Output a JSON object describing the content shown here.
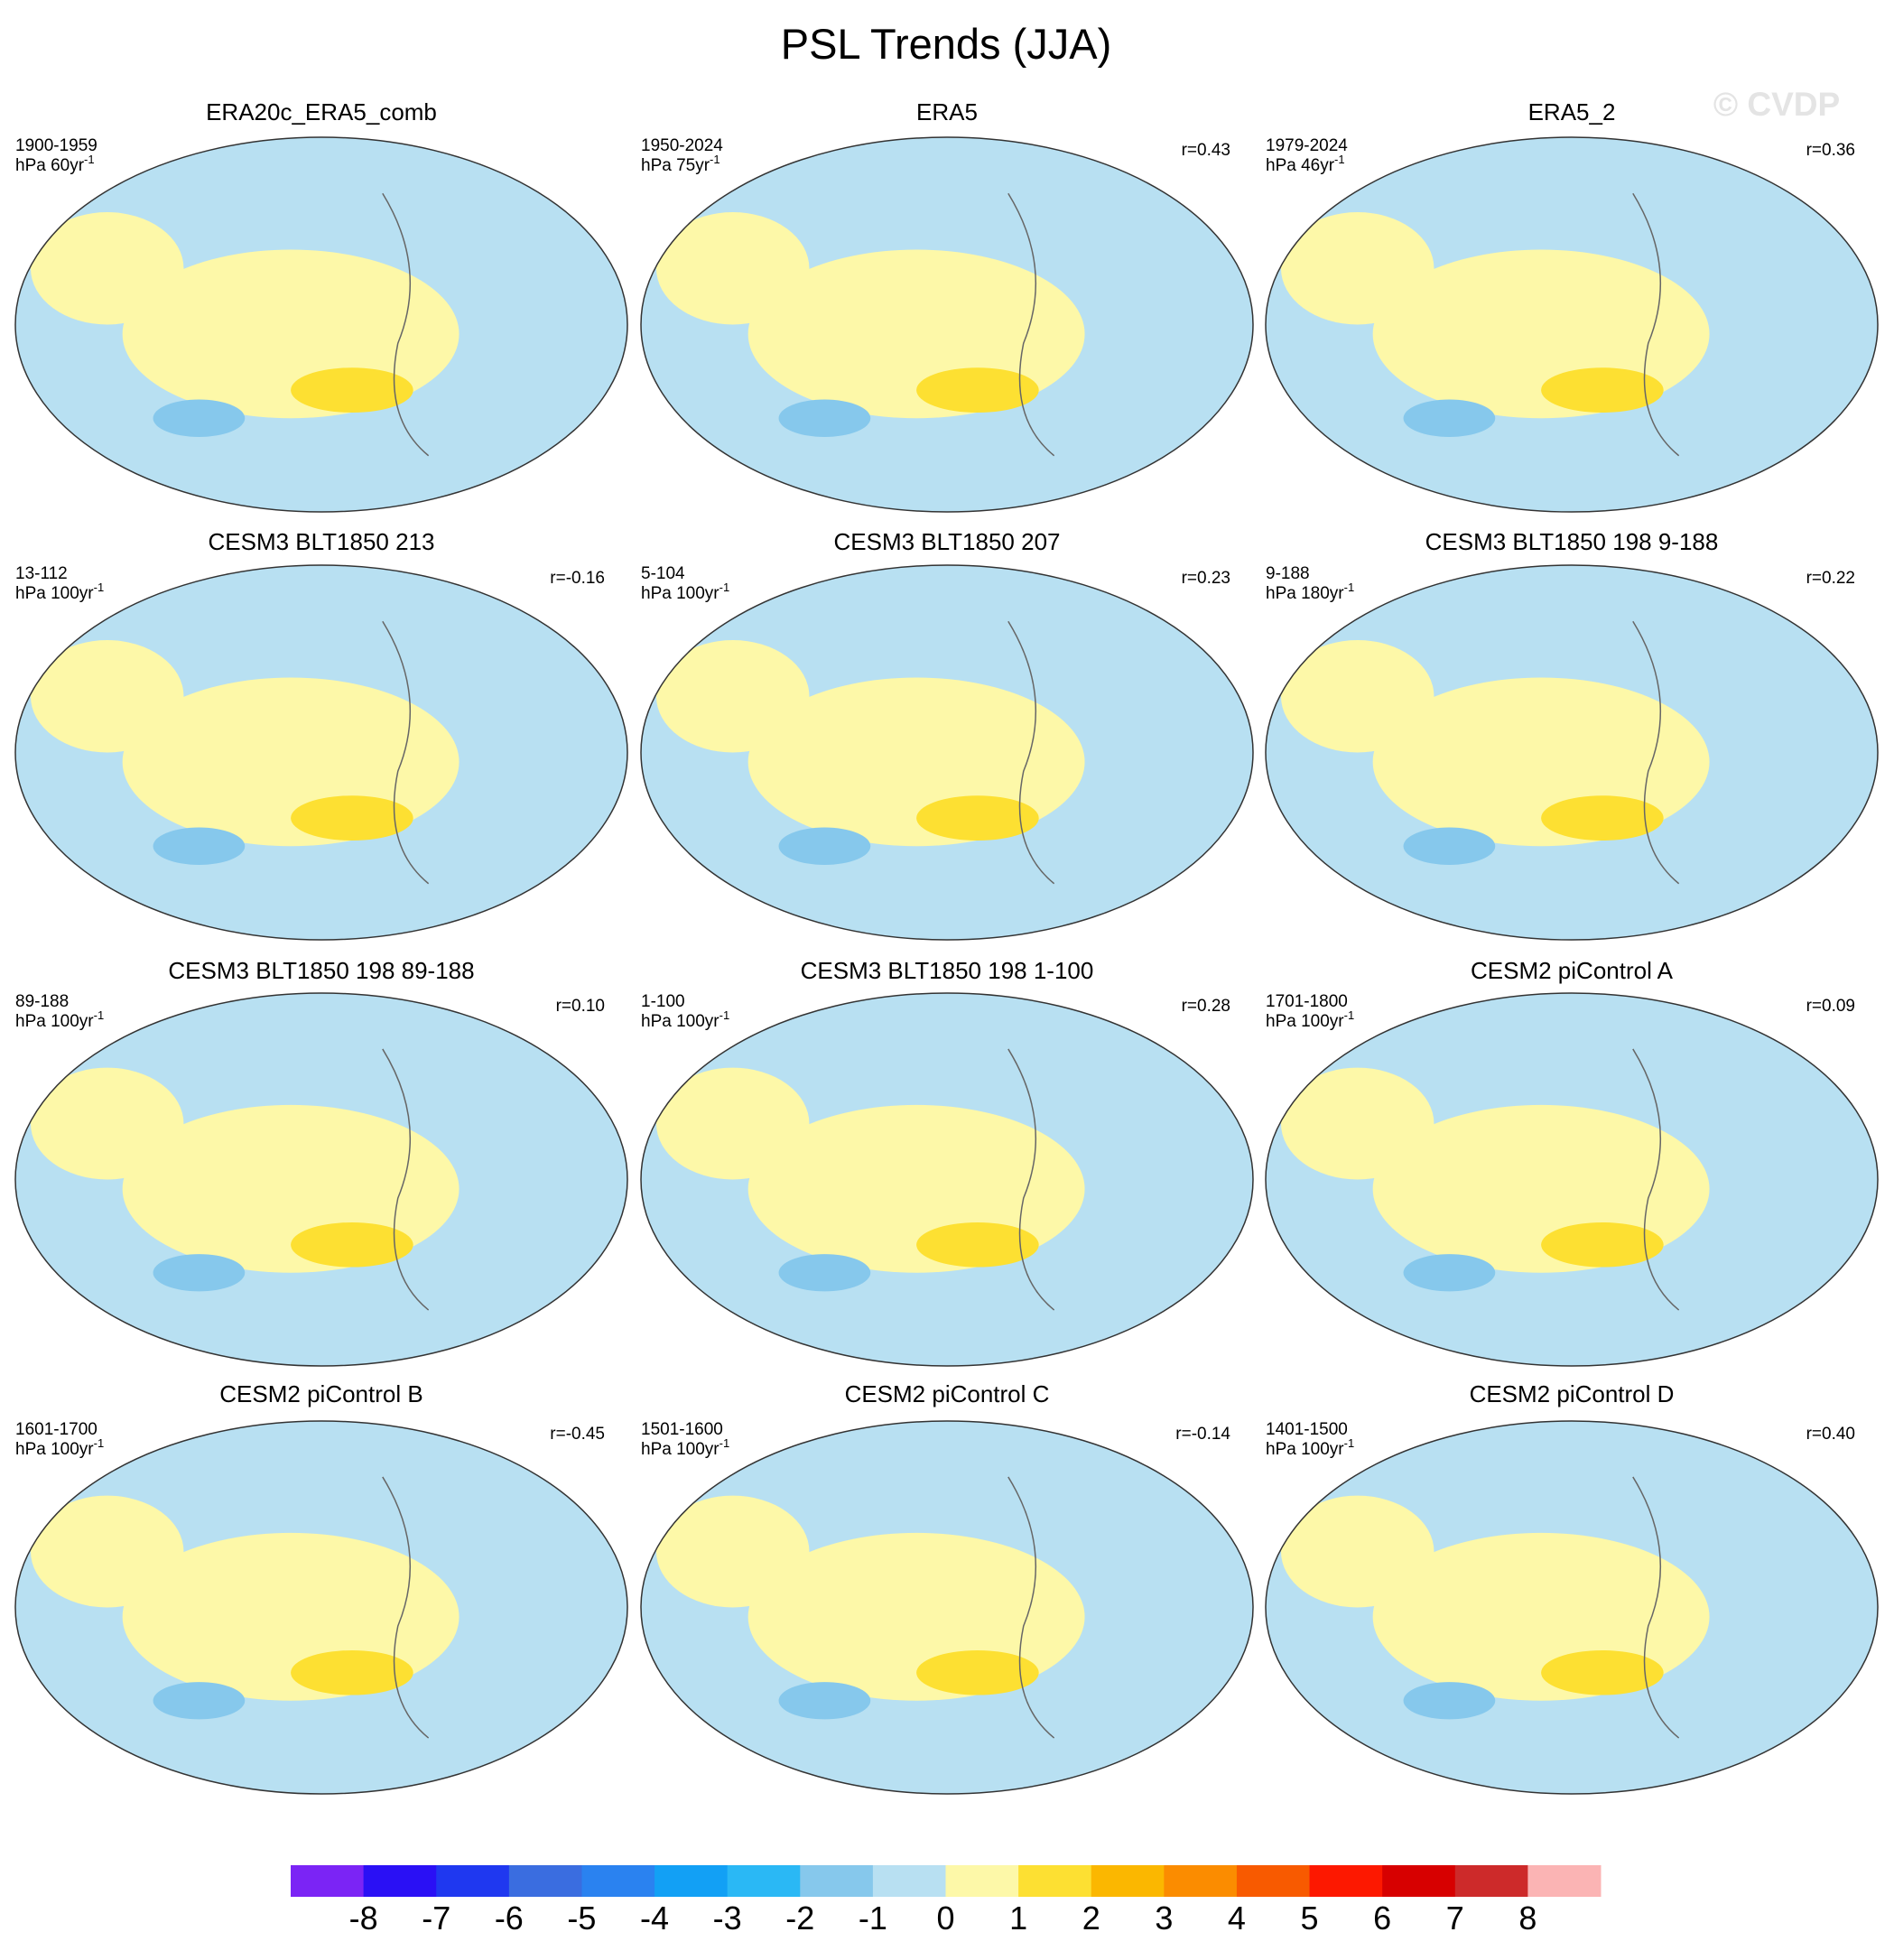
{
  "header": {
    "title": "PSL Trends (JJA)",
    "watermark": "© CVDP"
  },
  "panels": [
    {
      "title": "ERA20c_ERA5_comb",
      "period": "1900-1959",
      "units": "hPa 60yr",
      "exponent": "-1",
      "r": null
    },
    {
      "title": "ERA5",
      "period": "1950-2024",
      "units": "hPa 75yr",
      "exponent": "-1",
      "r": "r=0.43"
    },
    {
      "title": "ERA5_2",
      "period": "1979-2024",
      "units": "hPa 46yr",
      "exponent": "-1",
      "r": "r=0.36"
    },
    {
      "title": "CESM3 BLT1850 213",
      "period": "13-112",
      "units": "hPa 100yr",
      "exponent": "-1",
      "r": "r=-0.16"
    },
    {
      "title": "CESM3 BLT1850 207",
      "period": "5-104",
      "units": "hPa 100yr",
      "exponent": "-1",
      "r": "r=0.23"
    },
    {
      "title": "CESM3 BLT1850 198 9-188",
      "period": "9-188",
      "units": "hPa 180yr",
      "exponent": "-1",
      "r": "r=0.22"
    },
    {
      "title": "CESM3 BLT1850 198 89-188",
      "period": "89-188",
      "units": "hPa 100yr",
      "exponent": "-1",
      "r": "r=0.10"
    },
    {
      "title": "CESM3 BLT1850 198 1-100",
      "period": "1-100",
      "units": "hPa 100yr",
      "exponent": "-1",
      "r": "r=0.28"
    },
    {
      "title": "CESM2 piControl A",
      "period": "1701-1800",
      "units": "hPa 100yr",
      "exponent": "-1",
      "r": "r=0.09"
    },
    {
      "title": "CESM2 piControl B",
      "period": "1601-1700",
      "units": "hPa 100yr",
      "exponent": "-1",
      "r": "r=-0.45"
    },
    {
      "title": "CESM2 piControl C",
      "period": "1501-1600",
      "units": "hPa 100yr",
      "exponent": "-1",
      "r": "r=-0.14"
    },
    {
      "title": "CESM2 piControl D",
      "period": "1401-1500",
      "units": "hPa 100yr",
      "exponent": "-1",
      "r": "r=0.40"
    }
  ],
  "colorbar": {
    "colors": [
      "#7b24f5",
      "#2a10f5",
      "#1f38f0",
      "#3a6de0",
      "#2a82f0",
      "#12a0f5",
      "#2ab8f5",
      "#86c8ec",
      "#b8e0f2",
      "#fdf8a8",
      "#fde032",
      "#fbb700",
      "#fb8c00",
      "#f85a00",
      "#fd1800",
      "#d70000",
      "#cd2a2a",
      "#fbb4b4"
    ],
    "labels": [
      -8,
      -7,
      -6,
      -5,
      -4,
      -3,
      -2,
      -1,
      0,
      1,
      2,
      3,
      4,
      5,
      6,
      7,
      8
    ]
  }
}
